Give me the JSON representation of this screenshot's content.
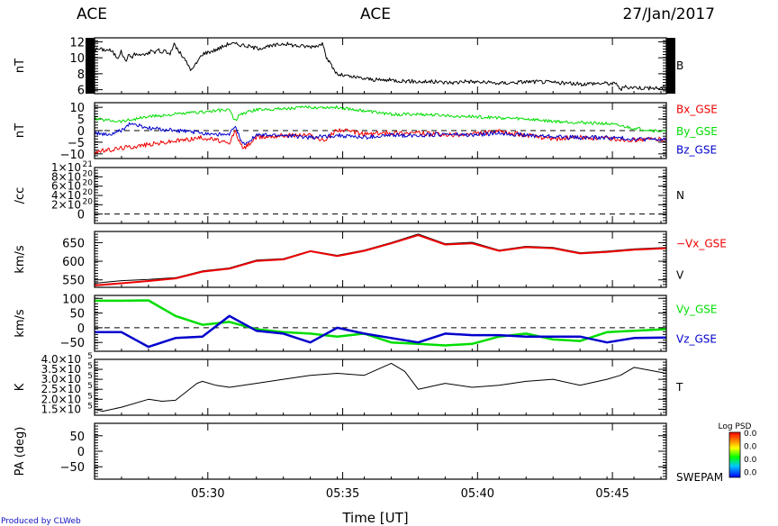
{
  "header": {
    "left": "ACE",
    "center": "ACE",
    "right": "27/Jan/2017"
  },
  "footer": {
    "credit": "Produced by CLWeb",
    "xlabel": "Time [UT]"
  },
  "colors": {
    "black": "#000000",
    "red": "#ee0000",
    "green": "#00dd00",
    "blue": "#0000cc"
  },
  "colorbar": {
    "title": "Log PSD",
    "labels": [
      "0.0",
      "0.0",
      "0.0",
      "0.0"
    ]
  },
  "chart_data": [
    {
      "type": "line",
      "id": "p0",
      "ylabel": "nT",
      "ylim": [
        5.5,
        12.5
      ],
      "yticks": [
        {
          "v": 12,
          "t": "12"
        },
        {
          "v": 10,
          "t": "10"
        },
        {
          "v": 8,
          "t": "8"
        },
        {
          "v": 6,
          "t": "6"
        }
      ],
      "series": [
        {
          "name": "B",
          "color": "#000000",
          "noise": 0.25,
          "x": [
            0.0,
            0.12,
            0.4,
            0.55,
            0.7,
            0.85,
            0.935,
            1.0,
            1.08,
            1.15,
            1.22,
            1.3,
            1.38,
            1.5,
            1.6,
            1.7,
            1.8,
            1.86,
            2.0,
            2.08,
            2.13,
            2.2,
            2.3,
            2.38,
            2.45,
            2.55,
            2.65,
            2.75,
            2.85,
            2.95,
            3.1,
            3.3,
            3.6,
            4.0,
            4.5,
            5.0,
            5.5,
            6.0,
            6.5,
            7.0,
            7.5,
            8.0,
            8.5,
            8.6,
            8.8,
            9.0,
            9.2,
            9.5,
            10.0,
            10.5,
            11.0,
            11.5,
            12.0,
            12.5,
            13.0,
            13.5,
            13.6,
            14.0,
            14.5,
            15.0,
            15.5,
            16.0,
            16.5,
            17.0,
            17.5,
            18.0,
            18.5,
            19.0,
            19.4,
            19.5,
            19.6,
            20.0,
            20.5,
            21.0,
            21.2
          ],
          "y": [
            11.0,
            11.1,
            11.0,
            11.0,
            10.6,
            10.0,
            10.5,
            10.8,
            10.0,
            9.6,
            10.1,
            10.3,
            10.1,
            10.5,
            10.4,
            10.3,
            10.6,
            10.2,
            10.6,
            10.8,
            11.0,
            10.6,
            10.9,
            11.1,
            10.4,
            11.0,
            10.8,
            10.5,
            10.7,
            11.8,
            10.9,
            10.0,
            8.4,
            10.5,
            11.0,
            11.8,
            11.6,
            11.2,
            11.4,
            11.8,
            11.5,
            11.4,
            11.7,
            10.0,
            8.9,
            7.9,
            7.8,
            7.6,
            7.4,
            7.2,
            7.2,
            7.1,
            7.0,
            7.0,
            6.9,
            6.9,
            7.1,
            7.0,
            6.9,
            6.8,
            6.9,
            7.0,
            7.0,
            6.9,
            6.8,
            6.7,
            6.8,
            6.8,
            6.7,
            5.9,
            6.3,
            6.3,
            6.2,
            6.2,
            6.4
          ]
        }
      ],
      "legend": [
        {
          "t": "B",
          "color": "#000000",
          "pos": 0.5
        }
      ]
    },
    {
      "type": "line",
      "id": "p1",
      "ylabel": "nT",
      "ylim": [
        -12,
        12
      ],
      "zero_line": true,
      "yticks": [
        {
          "v": 10,
          "t": "10"
        },
        {
          "v": 5,
          "t": "5"
        },
        {
          "v": 0,
          "t": "0"
        },
        {
          "v": -5,
          "t": "−5"
        },
        {
          "v": -10,
          "t": "−10"
        }
      ],
      "series": [
        {
          "name": "Bx_GSE",
          "color": "#ee0000",
          "noise": 1.0,
          "x": [
            0.0,
            0.5,
            1.0,
            2.0,
            3.0,
            4.0,
            4.5,
            5.0,
            5.2,
            5.5,
            6.0,
            7.0,
            8.0,
            8.5,
            9.0,
            10.0,
            11.0,
            12.0,
            13.0,
            14.0,
            15.0,
            16.0,
            17.0,
            18.0,
            19.0,
            20.0,
            21.2
          ],
          "y": [
            -9.0,
            -8.5,
            -7.5,
            -6.0,
            -4.5,
            -3.0,
            -4.0,
            -6.0,
            0.0,
            -8.0,
            -3.0,
            -2.0,
            -2.0,
            -4.5,
            0.5,
            -1.5,
            -1.0,
            -1.0,
            -2.0,
            -1.5,
            -0.5,
            -2.0,
            -3.5,
            -3.0,
            -3.5,
            -4.0,
            -3.5
          ]
        },
        {
          "name": "By_GSE",
          "color": "#00dd00",
          "noise": 0.7,
          "x": [
            0.0,
            1.0,
            1.5,
            2.0,
            3.0,
            4.0,
            5.0,
            5.2,
            5.4,
            6.0,
            7.0,
            8.0,
            9.0,
            11.0,
            12.0,
            13.0,
            14.0,
            15.0,
            16.0,
            17.0,
            18.0,
            19.0,
            20.0,
            21.2
          ],
          "y": [
            5.0,
            4.0,
            5.0,
            6.0,
            7.0,
            8.0,
            9.0,
            4.0,
            7.0,
            9.0,
            9.5,
            10.0,
            10.0,
            7.0,
            7.0,
            6.5,
            6.0,
            5.5,
            5.0,
            4.0,
            3.5,
            3.0,
            1.0,
            -0.5
          ]
        },
        {
          "name": "Bz_GSE",
          "color": "#0000cc",
          "noise": 0.9,
          "x": [
            0.0,
            0.5,
            1.0,
            1.3,
            2.0,
            3.0,
            4.0,
            5.0,
            5.2,
            5.5,
            6.0,
            7.0,
            8.0,
            9.0,
            10.0,
            11.0,
            12.0,
            13.0,
            14.0,
            15.0,
            16.0,
            17.0,
            18.0,
            19.0,
            20.0,
            21.2
          ],
          "y": [
            -1.0,
            -2.0,
            0.0,
            3.0,
            1.0,
            0.0,
            -1.0,
            -2.0,
            2.0,
            -6.0,
            -2.0,
            -2.0,
            -3.0,
            -2.0,
            -3.0,
            -2.0,
            -2.0,
            -1.5,
            -2.0,
            -1.0,
            -2.0,
            -2.5,
            -3.0,
            -3.0,
            -3.5,
            -4.0
          ]
        }
      ],
      "legend": [
        {
          "t": "Bx_GSE",
          "color": "#ee0000",
          "pos": 0.12
        },
        {
          "t": "By_GSE",
          "color": "#00dd00",
          "pos": 0.52
        },
        {
          "t": "Bz_GSE",
          "color": "#0000cc",
          "pos": 0.85
        }
      ]
    },
    {
      "type": "line",
      "id": "p2",
      "ylabel": "/cc",
      "ylim": [
        -0.2,
        1.0
      ],
      "zero_line": true,
      "yticks": [
        {
          "v": 1.0,
          "sci": [
            "1×10",
            "21"
          ]
        },
        {
          "v": 0.8,
          "sci": [
            "8×10",
            "20"
          ]
        },
        {
          "v": 0.6,
          "sci": [
            "6×10",
            "20"
          ]
        },
        {
          "v": 0.4,
          "sci": [
            "4×10",
            "20"
          ]
        },
        {
          "v": 0.2,
          "sci": [
            "2×10",
            "20"
          ]
        },
        {
          "v": 0.0,
          "t": "0"
        }
      ],
      "series": [],
      "legend": [
        {
          "t": "N",
          "color": "#000000",
          "pos": 0.5
        }
      ]
    },
    {
      "type": "line",
      "id": "p3",
      "ylabel": "km/s",
      "ylim": [
        530,
        680
      ],
      "yticks": [
        {
          "v": 650,
          "t": "650"
        },
        {
          "v": 600,
          "t": "600"
        },
        {
          "v": 550,
          "t": "550"
        }
      ],
      "series": [
        {
          "name": "V",
          "color": "#000000",
          "thick": 1,
          "x": [
            0.0,
            1.0,
            2.0,
            3.0,
            4.0,
            5.0,
            6.0,
            7.0,
            8.0,
            9.0,
            10.0,
            11.0,
            12.0,
            13.0,
            14.0,
            15.0,
            16.0,
            17.0,
            18.0,
            19.0,
            20.0,
            21.2
          ],
          "y": [
            541,
            548,
            551,
            556,
            574,
            582,
            603,
            607,
            628,
            616,
            630,
            650,
            673,
            647,
            651,
            630,
            640,
            637,
            623,
            627,
            633,
            637
          ]
        },
        {
          "name": "−Vx_GSE",
          "color": "#ee0000",
          "thick": 2,
          "x": [
            0.0,
            1.0,
            2.0,
            3.0,
            4.0,
            5.0,
            6.0,
            7.0,
            8.0,
            9.0,
            10.0,
            11.0,
            12.0,
            13.0,
            14.0,
            15.0,
            16.0,
            17.0,
            18.0,
            19.0,
            20.0,
            21.2
          ],
          "y": [
            535,
            541,
            547,
            554,
            572,
            580,
            601,
            605,
            627,
            614,
            628,
            648,
            670,
            645,
            648,
            628,
            638,
            635,
            621,
            625,
            631,
            635
          ]
        }
      ],
      "legend": [
        {
          "t": "−Vx_GSE",
          "color": "#ee0000",
          "pos": 0.22
        },
        {
          "t": "V",
          "color": "#000000",
          "pos": 0.78
        }
      ]
    },
    {
      "type": "line",
      "id": "p4",
      "ylabel": "km/s",
      "ylim": [
        -80,
        110
      ],
      "zero_line": true,
      "yticks": [
        {
          "v": 100,
          "t": "100"
        },
        {
          "v": 50,
          "t": "50"
        },
        {
          "v": 0,
          "t": "0"
        },
        {
          "v": -50,
          "t": "−50"
        }
      ],
      "series": [
        {
          "name": "Vy_GSE",
          "color": "#00dd00",
          "thick": 2.5,
          "x": [
            0.0,
            1.0,
            2.0,
            3.0,
            4.0,
            5.0,
            6.0,
            7.0,
            8.0,
            9.0,
            10.0,
            11.0,
            12.0,
            13.0,
            14.0,
            15.0,
            16.0,
            17.0,
            18.0,
            19.0,
            20.0,
            21.2
          ],
          "y": [
            92,
            92,
            93,
            40,
            10,
            20,
            -5,
            -15,
            -20,
            -30,
            -20,
            -50,
            -55,
            -60,
            -55,
            -30,
            -20,
            -40,
            -45,
            -15,
            -10,
            -5
          ]
        },
        {
          "name": "Vz_GSE",
          "color": "#0000cc",
          "thick": 2.5,
          "x": [
            0.0,
            1.0,
            2.0,
            3.0,
            4.0,
            5.0,
            6.0,
            7.0,
            8.0,
            9.0,
            10.0,
            11.0,
            12.0,
            13.0,
            14.0,
            15.0,
            16.0,
            17.0,
            18.0,
            19.0,
            20.0,
            21.2
          ],
          "y": [
            -15,
            -15,
            -65,
            -35,
            -30,
            40,
            -10,
            -20,
            -50,
            0,
            -20,
            -35,
            -50,
            -20,
            -25,
            -25,
            -30,
            -30,
            -30,
            -50,
            -35,
            -33
          ]
        }
      ],
      "legend": [
        {
          "t": "Vy_GSE",
          "color": "#00dd00",
          "pos": 0.25
        },
        {
          "t": "Vz_GSE",
          "color": "#0000cc",
          "pos": 0.78
        }
      ]
    },
    {
      "type": "line",
      "id": "p5",
      "ylabel": "K",
      "ylim": [
        1.2,
        4.0
      ],
      "yticks": [
        {
          "v": 4.0,
          "sci": [
            "4.0×10",
            "5"
          ]
        },
        {
          "v": 3.5,
          "sci": [
            "3.5×10",
            "5"
          ]
        },
        {
          "v": 3.0,
          "sci": [
            "3.0×10",
            "5"
          ]
        },
        {
          "v": 2.5,
          "sci": [
            "2.5×10",
            "5"
          ]
        },
        {
          "v": 2.0,
          "sci": [
            "2.0×10",
            "5"
          ]
        },
        {
          "v": 1.5,
          "sci": [
            "1.5×10",
            "5"
          ]
        }
      ],
      "series": [
        {
          "name": "T",
          "color": "#000000",
          "thick": 1,
          "x": [
            0.0,
            0.3,
            1.0,
            2.0,
            2.5,
            3.0,
            3.8,
            4.0,
            4.5,
            5.0,
            6.0,
            7.0,
            8.0,
            9.0,
            9.5,
            10.0,
            11.0,
            11.5,
            12.0,
            13.0,
            14.0,
            15.0,
            16.0,
            17.0,
            18.0,
            19.0,
            19.5,
            20.0,
            21.2
          ],
          "y": [
            1.5,
            1.4,
            1.6,
            2.0,
            1.9,
            1.95,
            2.8,
            2.9,
            2.7,
            2.6,
            2.8,
            3.0,
            3.2,
            3.3,
            3.25,
            3.2,
            3.8,
            3.4,
            2.5,
            2.8,
            2.6,
            2.7,
            2.9,
            3.0,
            2.7,
            3.0,
            3.2,
            3.6,
            3.3
          ]
        }
      ],
      "legend": [
        {
          "t": "T",
          "color": "#000000",
          "pos": 0.5
        }
      ]
    },
    {
      "type": "heatmap",
      "id": "p6",
      "ylabel": "PA (deg)",
      "ylim": [
        -90,
        90
      ],
      "yticks": [
        {
          "v": 50,
          "t": "50"
        },
        {
          "v": 0,
          "t": "0"
        },
        {
          "v": -50,
          "t": "−50"
        }
      ],
      "series": [],
      "legend": [
        {
          "t": "SWEPAM",
          "color": "#000000",
          "pos": 0.97
        }
      ]
    }
  ],
  "xaxis": {
    "xlim": [
      0.0,
      21.2
    ],
    "ticks": [
      {
        "v": 4.2,
        "t": "05:30"
      },
      {
        "v": 9.2,
        "t": "05:35"
      },
      {
        "v": 14.2,
        "t": "05:40"
      },
      {
        "v": 19.2,
        "t": "05:45"
      }
    ]
  }
}
